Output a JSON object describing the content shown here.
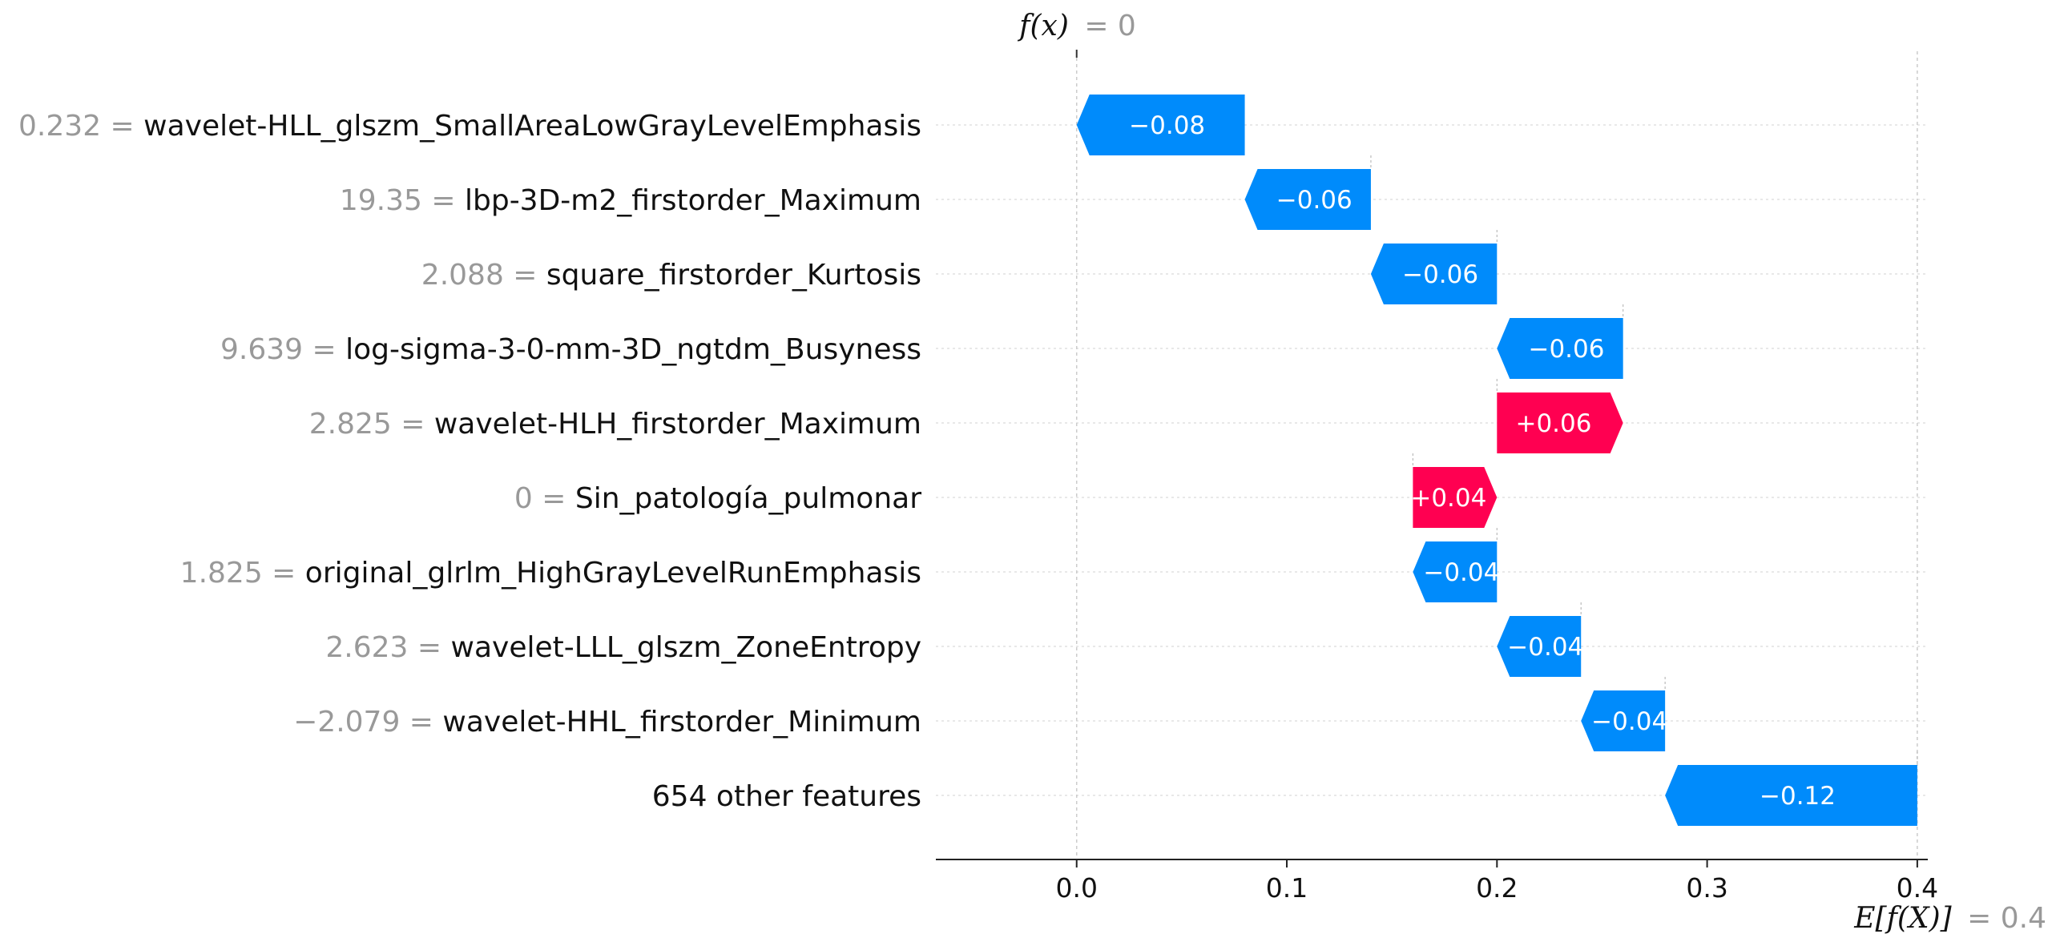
{
  "chart_data": {
    "type": "waterfall",
    "fx_label": "f(x)",
    "fx_value": "= 0",
    "ex_label": "E[f(X)]",
    "ex_value": "= 0.4",
    "base_value": 0.4,
    "output_value": 0.0,
    "xlim": [
      -0.067,
      0.405
    ],
    "xticks": [
      {
        "value": 0.0,
        "label": "0.0"
      },
      {
        "value": 0.1,
        "label": "0.1"
      },
      {
        "value": 0.2,
        "label": "0.2"
      },
      {
        "value": 0.3,
        "label": "0.3"
      },
      {
        "value": 0.4,
        "label": "0.4"
      }
    ],
    "features": [
      {
        "value": "0.232 =",
        "name": "wavelet-HLL_glszm_SmallAreaLowGrayLevelEmphasis",
        "contribution": -0.08,
        "label": "−0.08",
        "start": 0.0,
        "end": 0.08
      },
      {
        "value": "19.35 =",
        "name": "lbp-3D-m2_firstorder_Maximum",
        "contribution": -0.06,
        "label": "−0.06",
        "start": 0.08,
        "end": 0.14
      },
      {
        "value": "2.088 =",
        "name": "square_firstorder_Kurtosis",
        "contribution": -0.06,
        "label": "−0.06",
        "start": 0.14,
        "end": 0.2
      },
      {
        "value": "9.639 =",
        "name": "log-sigma-3-0-mm-3D_ngtdm_Busyness",
        "contribution": -0.06,
        "label": "−0.06",
        "start": 0.2,
        "end": 0.26
      },
      {
        "value": "2.825 =",
        "name": "wavelet-HLH_firstorder_Maximum",
        "contribution": 0.06,
        "label": "+0.06",
        "start": 0.2,
        "end": 0.26
      },
      {
        "value": "0 =",
        "name": "Sin_patología_pulmonar",
        "contribution": 0.04,
        "label": "+0.04",
        "start": 0.16,
        "end": 0.2
      },
      {
        "value": "1.825 =",
        "name": "original_glrlm_HighGrayLevelRunEmphasis",
        "contribution": -0.04,
        "label": "−0.04",
        "start": 0.16,
        "end": 0.2
      },
      {
        "value": "2.623 =",
        "name": "wavelet-LLL_glszm_ZoneEntropy",
        "contribution": -0.04,
        "label": "−0.04",
        "start": 0.2,
        "end": 0.24
      },
      {
        "value": "−2.079 =",
        "name": "wavelet-HHL_firstorder_Minimum",
        "contribution": -0.04,
        "label": "−0.04",
        "start": 0.24,
        "end": 0.28
      },
      {
        "value": "",
        "name": "654 other features",
        "contribution": -0.12,
        "label": "−0.12",
        "start": 0.28,
        "end": 0.4
      }
    ],
    "colors": {
      "positive": "#ff0051",
      "negative": "#008bfb",
      "grid": "#d9d9d9"
    }
  }
}
